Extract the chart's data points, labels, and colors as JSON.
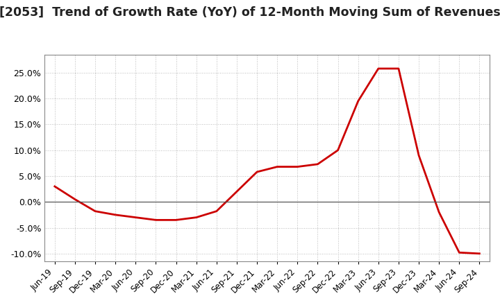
{
  "title": "[2053]  Trend of Growth Rate (YoY) of 12-Month Moving Sum of Revenues",
  "title_fontsize": 12.5,
  "line_color": "#cc0000",
  "background_color": "#ffffff",
  "grid_color": "#bbbbbb",
  "border_color": "#888888",
  "ylim": [
    -0.115,
    0.285
  ],
  "yticks": [
    -0.1,
    -0.05,
    0.0,
    0.05,
    0.1,
    0.15,
    0.2,
    0.25
  ],
  "x_labels": [
    "Jun-19",
    "Sep-19",
    "Dec-19",
    "Mar-20",
    "Jun-20",
    "Sep-20",
    "Dec-20",
    "Mar-21",
    "Jun-21",
    "Sep-21",
    "Dec-21",
    "Mar-22",
    "Jun-22",
    "Sep-22",
    "Dec-22",
    "Mar-23",
    "Jun-23",
    "Sep-23",
    "Dec-23",
    "Mar-24",
    "Jun-24",
    "Sep-24"
  ],
  "values": [
    0.03,
    0.005,
    -0.018,
    -0.025,
    -0.03,
    -0.035,
    -0.035,
    -0.03,
    -0.018,
    0.02,
    0.058,
    0.068,
    0.068,
    0.073,
    0.1,
    0.195,
    0.258,
    0.258,
    0.09,
    -0.02,
    -0.098,
    -0.1
  ]
}
